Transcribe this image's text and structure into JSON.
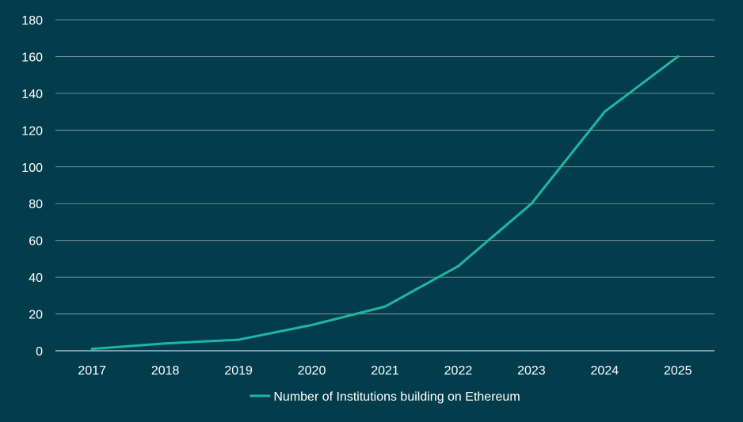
{
  "chart_data": {
    "type": "line",
    "categories": [
      "2017",
      "2018",
      "2019",
      "2020",
      "2021",
      "2022",
      "2023",
      "2024",
      "2025"
    ],
    "series": [
      {
        "name": "Number of Institutions building on Ethereum",
        "values": [
          1,
          4,
          6,
          14,
          24,
          46,
          80,
          130,
          160
        ],
        "color": "#1FB5A2"
      }
    ],
    "y_ticks": [
      "0",
      "20",
      "40",
      "60",
      "80",
      "100",
      "120",
      "140",
      "160",
      "180"
    ],
    "ylim": [
      0,
      180
    ],
    "grid": true,
    "legend_position": "bottom-center",
    "colors": {
      "background": "#033D4B",
      "gridline": "#8FA9AF",
      "text": "#FFFFFF"
    }
  }
}
